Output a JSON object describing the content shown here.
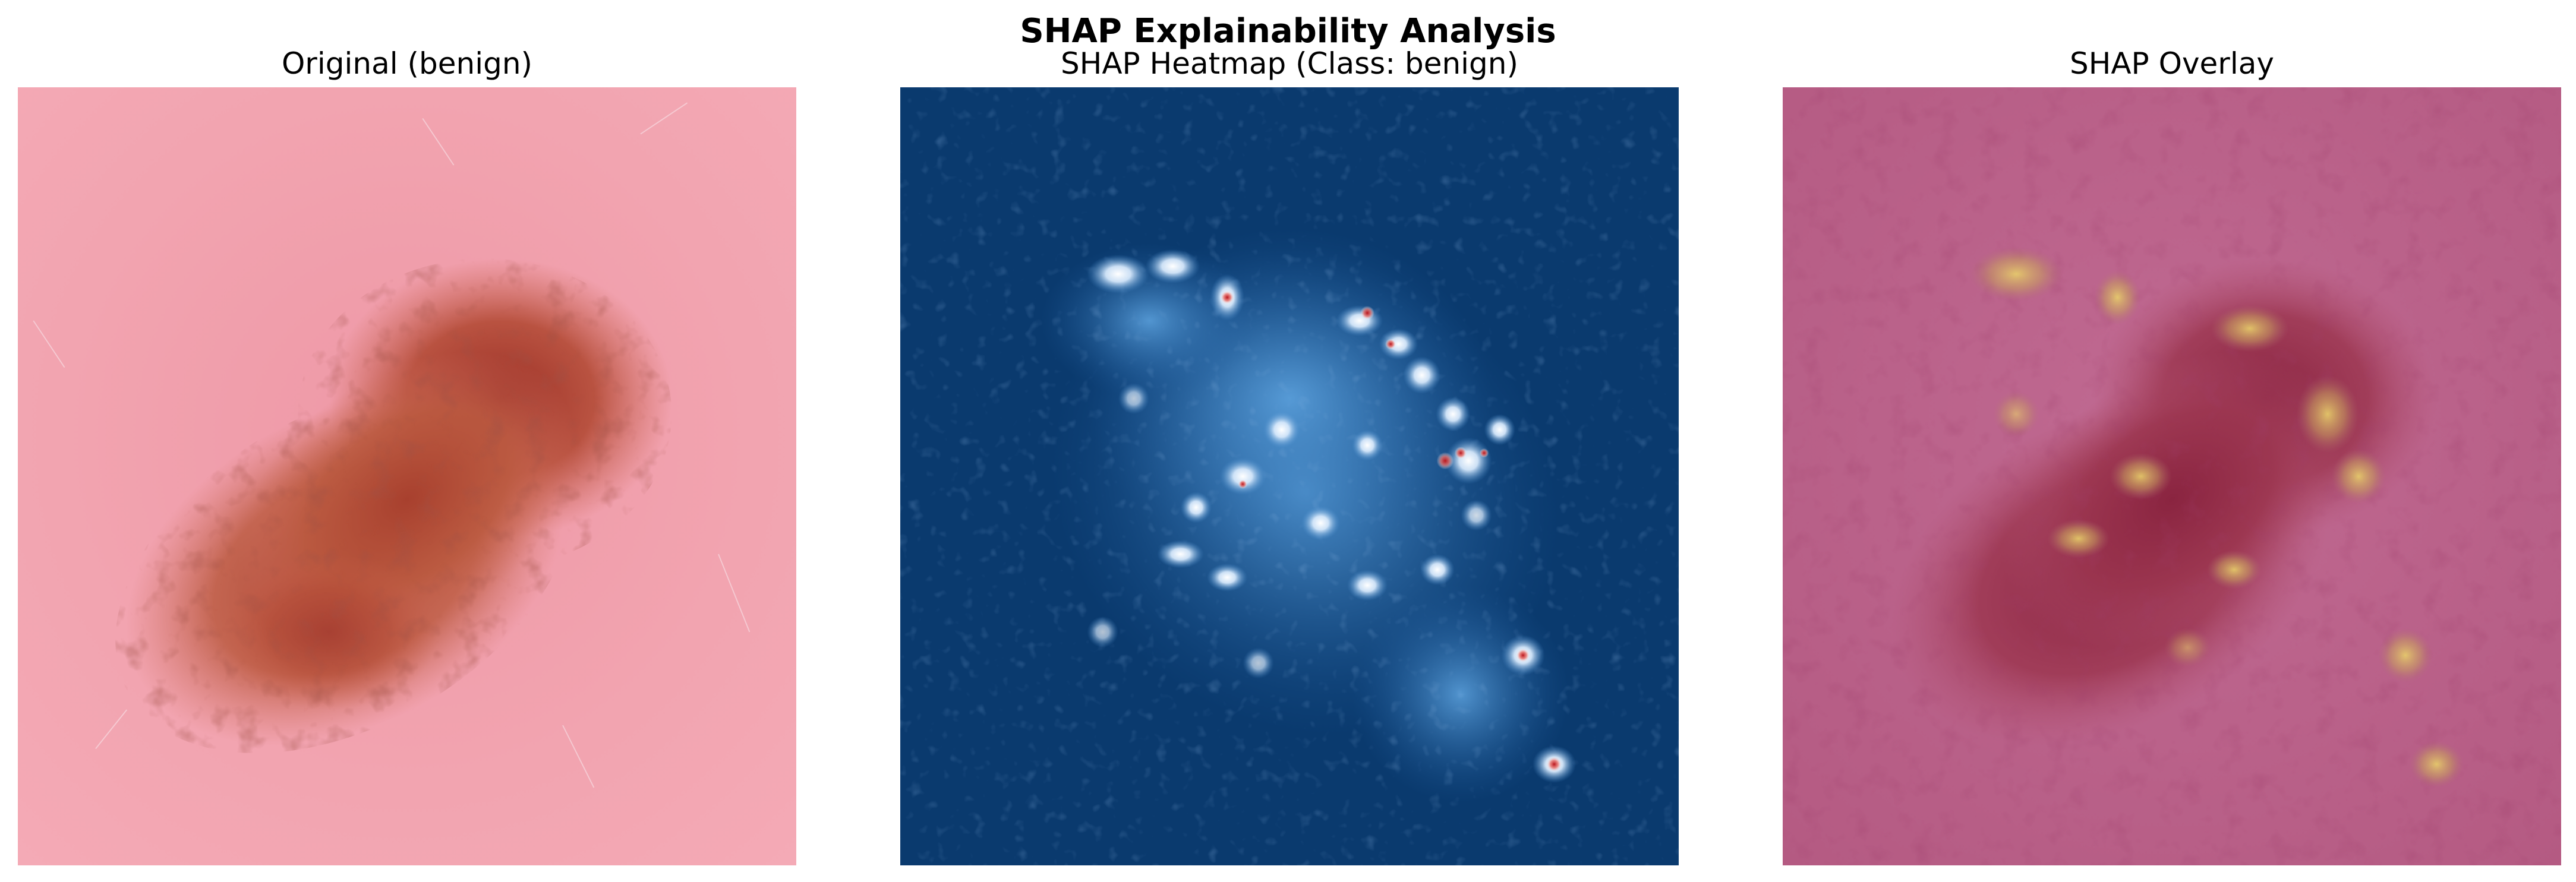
{
  "figure": {
    "title": "SHAP Explainability Analysis"
  },
  "panels": [
    {
      "title": "Original (benign)",
      "image": "dermoscopy-lesion"
    },
    {
      "title": "SHAP Heatmap (Class: benign)",
      "image": "shap-heatmap"
    },
    {
      "title": "SHAP Overlay",
      "image": "shap-overlay"
    }
  ],
  "colors": {
    "skin_pink": "#f2a0ad",
    "lesion_brown": "#a8452c",
    "heatmap_background": "#0a3a6e",
    "heatmap_high": "#e8f2ff",
    "heatmap_peak": "#d0302a",
    "overlay_base": "#b8628a",
    "overlay_highlight": "#d8c860"
  }
}
